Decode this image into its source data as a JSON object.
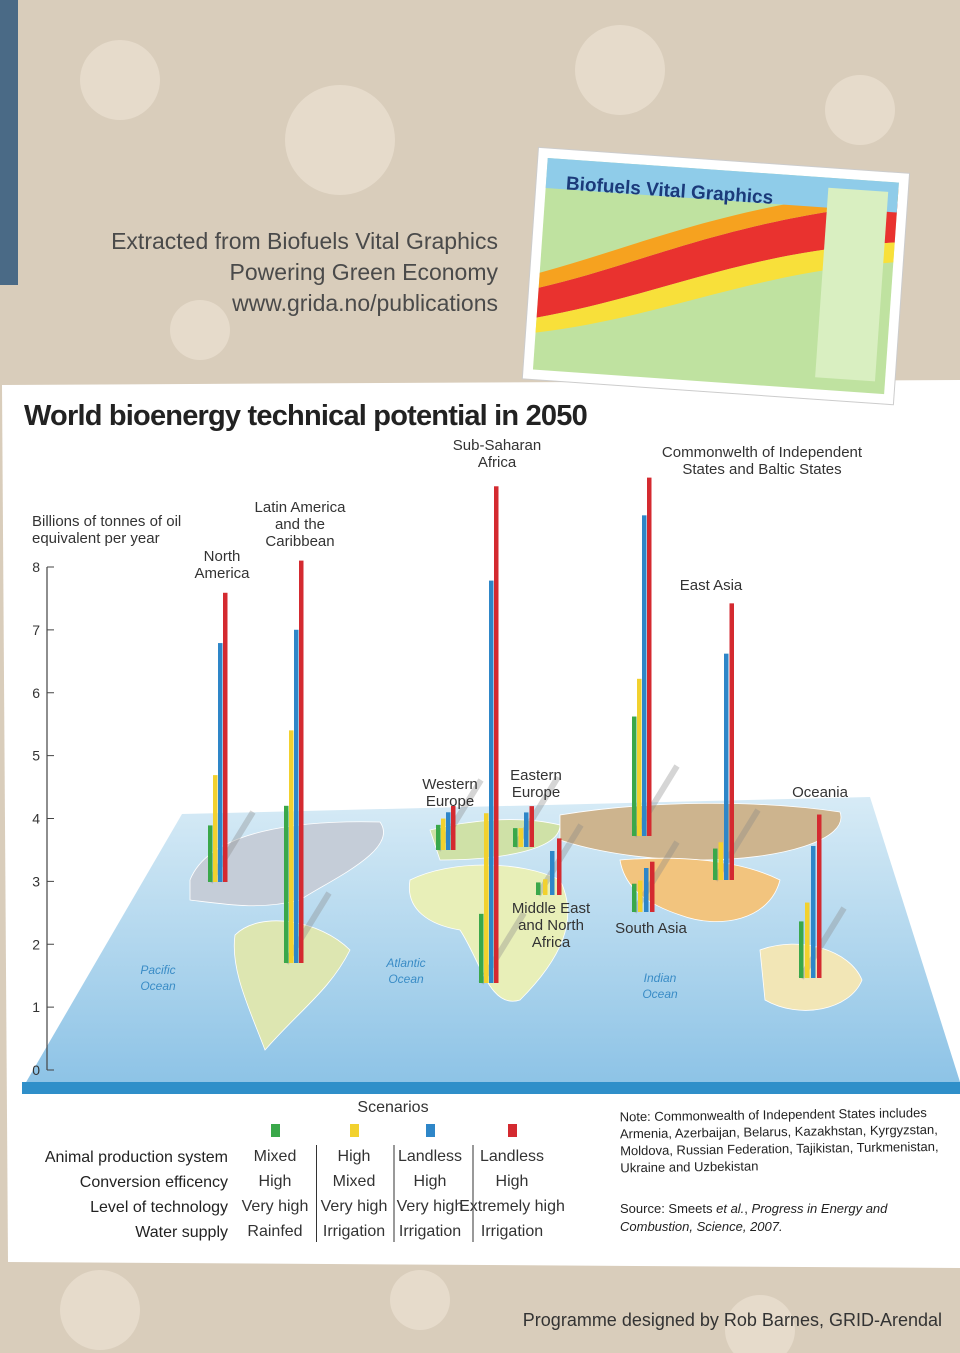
{
  "header": {
    "lines": [
      "Extracted from Biofuels Vital Graphics",
      "Powering Green Economy",
      "www.grida.no/publications"
    ],
    "cover_title": "Biofuels Vital Graphics"
  },
  "chart_data": {
    "type": "bar",
    "title": "World bioenergy technical potential in 2050",
    "y_label": "Billions of tonnes of oil equivalent per year",
    "ylim": [
      0,
      8
    ],
    "yticks": [
      0,
      1,
      2,
      3,
      4,
      5,
      6,
      7,
      8
    ],
    "categories": [
      "North America",
      "Latin America and the Caribbean",
      "Sub-Saharan Africa",
      "Western Europe",
      "Eastern Europe",
      "Commonwelth of Independent States and Baltic States",
      "East Asia",
      "Middle East and North Africa",
      "South Asia",
      "Oceania"
    ],
    "series": [
      {
        "color": "#3aa84a",
        "values": [
          0.9,
          2.5,
          1.1,
          0.4,
          0.3,
          1.9,
          0.5,
          0.2,
          0.45,
          0.9
        ]
      },
      {
        "color": "#f2d12e",
        "values": [
          1.7,
          3.7,
          2.7,
          0.5,
          0.3,
          2.5,
          0.6,
          0.25,
          0.5,
          1.2
        ]
      },
      {
        "color": "#2e86c8",
        "values": [
          3.8,
          5.3,
          6.4,
          0.6,
          0.55,
          5.1,
          3.6,
          0.7,
          0.7,
          2.1
        ]
      },
      {
        "color": "#d42a30",
        "values": [
          4.6,
          6.4,
          7.9,
          0.7,
          0.65,
          5.7,
          4.4,
          0.9,
          0.8,
          2.6
        ]
      }
    ],
    "oceans": [
      "Pacific Ocean",
      "Atlantic Ocean",
      "Indian Ocean"
    ]
  },
  "scenarios": {
    "title": "Scenarios",
    "row_labels": [
      "Animal production system",
      "Conversion efficency",
      "Level of technology",
      "Water supply"
    ],
    "columns": [
      [
        "Mixed",
        "High",
        "Very high",
        "Rainfed"
      ],
      [
        "High",
        "Mixed",
        "Very high",
        "Irrigation"
      ],
      [
        "Landless",
        "High",
        "Very high",
        "Irrigation"
      ],
      [
        "Landless",
        "High",
        "Extremely high",
        "Irrigation"
      ]
    ]
  },
  "note": "Note: Commonwealth of Independent States includes Armenia, Azerbaijan, Belarus, Kazakhstan, Kyrgyzstan, Moldova, Russian Federation, Tajikistan, Turkmenistan, Ukraine and Uzbekistan",
  "source": {
    "prefix": "Source: Smeets ",
    "etal": "et al.",
    "sep": ", ",
    "journal": "Progress in Energy and Combustion, Science, 2007."
  },
  "footer": "Programme designed by Rob Barnes,  GRID-Arendal"
}
